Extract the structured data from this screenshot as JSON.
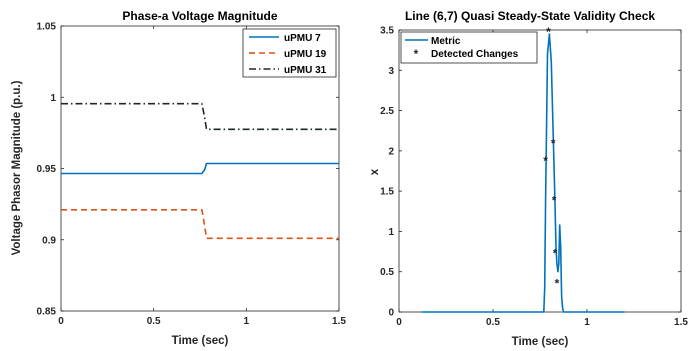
{
  "colors": {
    "upmu7": "#0072BD",
    "upmu19": "#D95319",
    "upmu31": "#1b2a24",
    "metric": "#0072BD",
    "detected": "#FF0000",
    "axis": "#262626"
  },
  "chart_data": [
    {
      "type": "line",
      "title": "Phase-a Voltage Magnitude",
      "xlabel": "Time (sec)",
      "ylabel": "Voltage Phasor Magnitude (p.u.)",
      "xlim": [
        0,
        1.5
      ],
      "ylim": [
        0.85,
        1.05
      ],
      "xticks": [
        0,
        0.5,
        1,
        1.5
      ],
      "xtick_labels": [
        "0",
        "0.5",
        "1",
        "1.5"
      ],
      "yticks": [
        0.85,
        0.9,
        0.95,
        1,
        1.05
      ],
      "ytick_labels": [
        "0.85",
        "0.9",
        "0.95",
        "1",
        "1.05"
      ],
      "grid": false,
      "legend_position": "top-right",
      "series": [
        {
          "name": "uPMU 7",
          "style": "solid",
          "color": "#0072BD",
          "x": [
            0,
            0.76,
            0.775,
            0.785,
            1.5
          ],
          "y": [
            0.9465,
            0.9465,
            0.949,
            0.9535,
            0.9535
          ]
        },
        {
          "name": "uPMU 19",
          "style": "dashed",
          "color": "#D95319",
          "x": [
            0,
            0.76,
            0.775,
            0.785,
            1.5
          ],
          "y": [
            0.921,
            0.921,
            0.91,
            0.901,
            0.901
          ]
        },
        {
          "name": "uPMU 31",
          "style": "dashdot",
          "color": "#1b2a24",
          "x": [
            0,
            0.76,
            0.775,
            0.785,
            1.5
          ],
          "y": [
            0.9955,
            0.9955,
            0.986,
            0.9775,
            0.9775
          ]
        }
      ]
    },
    {
      "type": "line",
      "title": "Line (6,7) Quasi Steady-State Validity Check",
      "xlabel": "Time (sec)",
      "ylabel": "x",
      "xlim": [
        0,
        1.5
      ],
      "ylim": [
        0,
        3.5
      ],
      "xticks": [
        0,
        0.5,
        1,
        1.5
      ],
      "xtick_labels": [
        "0",
        "0.5",
        "1",
        "1.5"
      ],
      "yticks": [
        0,
        0.5,
        1,
        1.5,
        2,
        2.5,
        3,
        3.5
      ],
      "ytick_labels": [
        "0",
        "0.5",
        "1",
        "1.5",
        "2",
        "2.5",
        "3",
        "3.5"
      ],
      "grid": false,
      "legend_position": "top-left",
      "series": [
        {
          "name": "Metric",
          "style": "solid",
          "color": "#0072BD",
          "x": [
            0.12,
            0.77,
            0.775,
            0.78,
            0.79,
            0.8,
            0.81,
            0.82,
            0.83,
            0.835,
            0.84,
            0.845,
            0.85,
            0.855,
            0.86,
            0.865,
            0.87,
            0.875,
            0.88,
            1.2
          ],
          "y": [
            0.0,
            0.0,
            0.3,
            1.4,
            3.2,
            3.45,
            3.1,
            2.2,
            1.35,
            0.8,
            0.6,
            0.5,
            0.6,
            1.08,
            0.8,
            0.2,
            0.05,
            0.0,
            0.0,
            0.0
          ]
        },
        {
          "name": "Detected Changes",
          "style": "markers",
          "marker": "*",
          "color": "#FF0000",
          "x": [
            0.78,
            0.795,
            0.82,
            0.825,
            0.83,
            0.84
          ],
          "y": [
            1.88,
            3.48,
            2.1,
            1.39,
            0.73,
            0.36
          ]
        }
      ]
    }
  ]
}
